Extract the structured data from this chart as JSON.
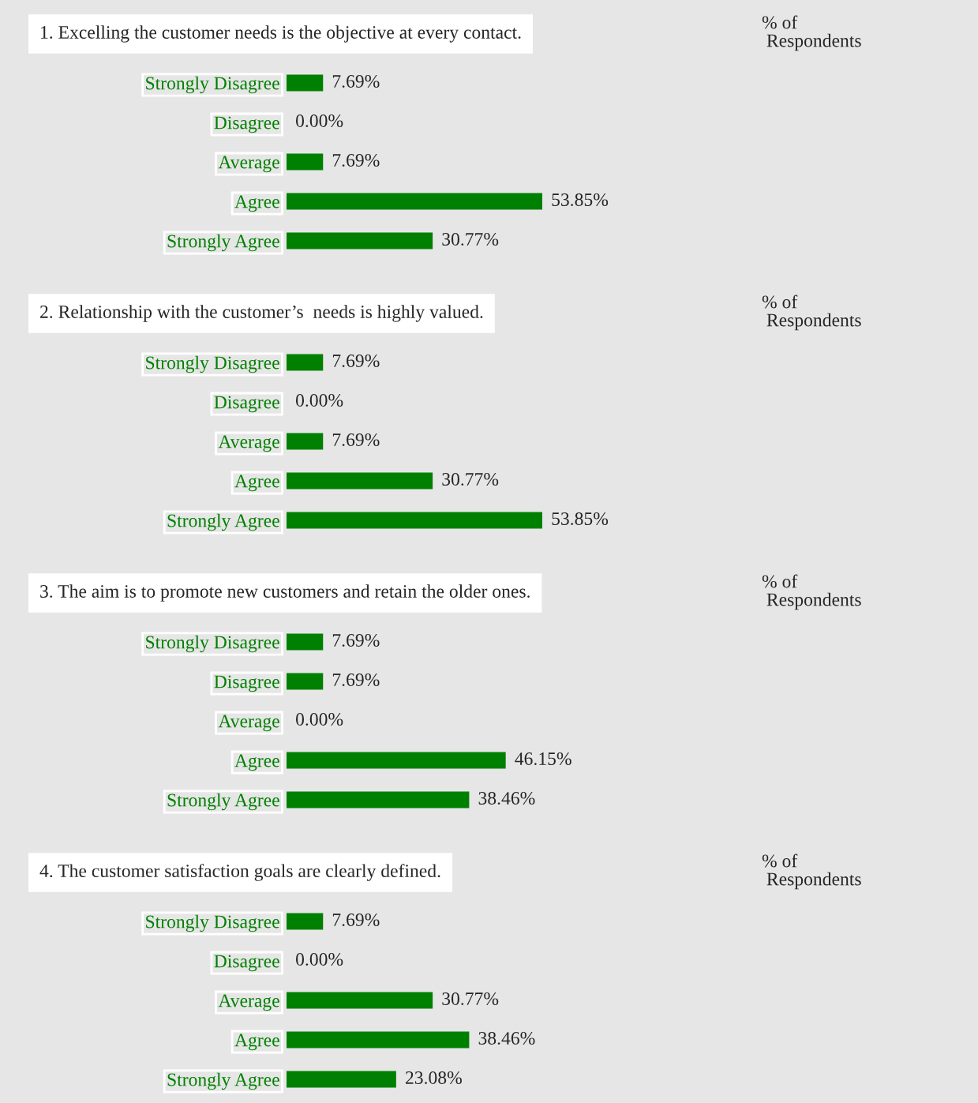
{
  "chart_data": [
    {
      "type": "bar",
      "orientation": "horizontal",
      "title": "1. Excelling the customer needs is the objective at every contact.",
      "annotations": [
        "% of\n Respondents"
      ],
      "categories": [
        "Strongly Disagree",
        "Disagree",
        "Average",
        "Agree",
        "Strongly Agree"
      ],
      "values": [
        7.69,
        0.0,
        7.69,
        53.85,
        30.77
      ],
      "value_labels": [
        "7.69%",
        "0.00%",
        "7.69%",
        "53.85%",
        "30.77%"
      ],
      "color": "#008000",
      "tick_labels": "y",
      "grid": false,
      "legend": false
    },
    {
      "type": "bar",
      "orientation": "horizontal",
      "title": "2. Relationship with the customer’s  needs is highly valued.",
      "annotations": [
        "% of\n Respondents"
      ],
      "categories": [
        "Strongly Disagree",
        "Disagree",
        "Average",
        "Agree",
        "Strongly Agree"
      ],
      "values": [
        7.69,
        0.0,
        7.69,
        30.77,
        53.85
      ],
      "value_labels": [
        "7.69%",
        "0.00%",
        "7.69%",
        "30.77%",
        "53.85%"
      ],
      "color": "#008000",
      "tick_labels": "y",
      "grid": false,
      "legend": false
    },
    {
      "type": "bar",
      "orientation": "horizontal",
      "title": "3. The aim is to promote new customers and retain the older ones.",
      "annotations": [
        "% of\n Respondents"
      ],
      "categories": [
        "Strongly Disagree",
        "Disagree",
        "Average",
        "Agree",
        "Strongly Agree"
      ],
      "values": [
        7.69,
        7.69,
        0.0,
        46.15,
        38.46
      ],
      "value_labels": [
        "7.69%",
        "7.69%",
        "0.00%",
        "46.15%",
        "38.46%"
      ],
      "color": "#008000",
      "tick_labels": "y",
      "grid": false,
      "legend": false
    },
    {
      "type": "bar",
      "orientation": "horizontal",
      "title": "4. The customer satisfaction goals are clearly defined.",
      "annotations": [
        "% of\n Respondents"
      ],
      "categories": [
        "Strongly Disagree",
        "Disagree",
        "Average",
        "Agree",
        "Strongly Agree"
      ],
      "values": [
        7.69,
        0.0,
        30.77,
        38.46,
        23.08
      ],
      "value_labels": [
        "7.69%",
        "0.00%",
        "30.77%",
        "38.46%",
        "23.08%"
      ],
      "color": "#008000",
      "tick_labels": "y",
      "grid": false,
      "legend": false
    }
  ]
}
